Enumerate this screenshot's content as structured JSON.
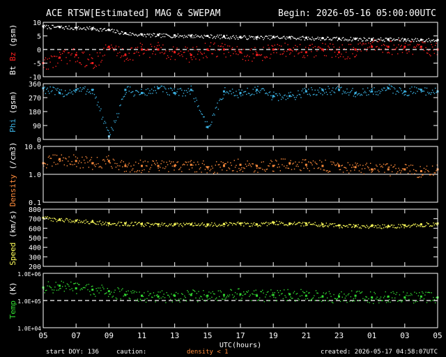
{
  "header": {
    "title": "ACE RTSW[Estimated] MAG & SWEPAM",
    "begin": "Begin: 2026-05-16 05:00:00UTC"
  },
  "footer": {
    "start_doy": "start DOY: 136",
    "caution": "caution:",
    "density_note": "density < 1",
    "created": "created: 2026-05-17 04:58:07UTC"
  },
  "colors": {
    "bt": "#ffffff",
    "bz": "#ff2020",
    "phi": "#3cb4e6",
    "density": "#ff8c3c",
    "speed": "#ffff5a",
    "temp": "#32dc32",
    "frame": "#ffffff"
  },
  "chart_data": [
    {
      "type": "scatter",
      "ylabel_parts": [
        "Bt",
        "Bz",
        "(gsm)"
      ],
      "ylim": [
        -10,
        10
      ],
      "yticks": [
        "10",
        "5",
        "0",
        "-5",
        "-10"
      ],
      "ytick_values": [
        10,
        5,
        0,
        -5,
        -10
      ],
      "dashed_ref": 0,
      "series": [
        {
          "name": "Bt",
          "x": [
            0,
            1,
            2,
            3,
            4,
            5,
            6,
            7,
            8,
            9,
            10,
            11,
            12,
            13,
            14,
            15,
            16,
            17,
            18,
            19,
            20,
            21,
            22,
            23,
            24
          ],
          "values": [
            8.5,
            8.3,
            8,
            7.8,
            7.2,
            6,
            5.5,
            5.3,
            5.2,
            5.1,
            5,
            4.8,
            4.6,
            4.5,
            4.6,
            4.5,
            4.3,
            4.2,
            4,
            4,
            3.8,
            3.8,
            3.7,
            3.6,
            3.5
          ]
        },
        {
          "name": "Bz",
          "x": [
            0,
            1,
            2,
            3,
            4,
            5,
            6,
            7,
            8,
            9,
            10,
            11,
            12,
            13,
            14,
            15,
            16,
            17,
            18,
            19,
            20,
            21,
            22,
            23,
            24
          ],
          "values": [
            -5,
            -3,
            -2,
            -5,
            1,
            -2,
            0,
            0,
            -1,
            -2,
            0,
            0,
            -1,
            -2,
            0,
            0,
            -1,
            0,
            -1,
            0,
            1,
            1,
            1,
            1,
            0
          ]
        }
      ]
    },
    {
      "type": "scatter",
      "ylabel_parts": [
        "Phi",
        "(gsm)"
      ],
      "ylim": [
        0,
        360
      ],
      "yticks": [
        "360",
        "270",
        "180",
        "90",
        "0"
      ],
      "ytick_values": [
        360,
        270,
        180,
        90,
        0
      ],
      "series": [
        {
          "name": "Phi",
          "x": [
            0,
            1,
            2,
            3,
            4,
            5,
            6,
            7,
            8,
            9,
            10,
            11,
            12,
            13,
            14,
            15,
            16,
            17,
            18,
            19,
            20,
            21,
            22,
            23,
            24
          ],
          "values": [
            330,
            300,
            320,
            320,
            20,
            320,
            300,
            330,
            300,
            320,
            80,
            310,
            300,
            320,
            280,
            280,
            310,
            320,
            320,
            300,
            310,
            330,
            310,
            320,
            310
          ]
        }
      ]
    },
    {
      "type": "scatter",
      "ylabel_parts": [
        "Density",
        "(/cm3)"
      ],
      "ylim": [
        0.1,
        10
      ],
      "yscale": "log",
      "yticks": [
        "10.0",
        "1.0",
        "0.1"
      ],
      "ytick_values": [
        10,
        1,
        0.1
      ],
      "solid_ref": 1,
      "series": [
        {
          "name": "Density",
          "x": [
            0,
            1,
            2,
            3,
            4,
            5,
            6,
            7,
            8,
            9,
            10,
            11,
            12,
            13,
            14,
            15,
            16,
            17,
            18,
            19,
            20,
            21,
            22,
            23,
            24
          ],
          "values": [
            2.5,
            3.5,
            3,
            2.5,
            3,
            2,
            2,
            2,
            2,
            2.2,
            1.8,
            2,
            2.2,
            2,
            2,
            2.5,
            2.2,
            2,
            2,
            1.8,
            1.5,
            1.5,
            1.5,
            1.3,
            1.5
          ]
        }
      ]
    },
    {
      "type": "scatter",
      "ylabel_parts": [
        "Speed",
        "(km/s)"
      ],
      "ylim": [
        200,
        800
      ],
      "yticks": [
        "800",
        "700",
        "600",
        "500",
        "400",
        "300",
        "200"
      ],
      "ytick_values": [
        800,
        700,
        600,
        500,
        400,
        300,
        200
      ],
      "series": [
        {
          "name": "Speed",
          "x": [
            0,
            1,
            2,
            3,
            4,
            5,
            6,
            7,
            8,
            9,
            10,
            11,
            12,
            13,
            14,
            15,
            16,
            17,
            18,
            19,
            20,
            21,
            22,
            23,
            24
          ],
          "values": [
            710,
            690,
            680,
            670,
            650,
            650,
            645,
            640,
            640,
            640,
            640,
            645,
            650,
            640,
            660,
            650,
            650,
            640,
            630,
            625,
            625,
            620,
            630,
            640,
            650
          ]
        }
      ]
    },
    {
      "type": "scatter",
      "ylabel_parts": [
        "Temp",
        "(K)"
      ],
      "ylim": [
        10000,
        1000000
      ],
      "yscale": "log",
      "yticks": [
        "1.0E+06",
        "1.0E+05",
        "1.0E+04"
      ],
      "ytick_values": [
        1000000,
        100000,
        10000
      ],
      "dashed_ref": 100000,
      "series": [
        {
          "name": "Temp",
          "x": [
            0,
            1,
            2,
            3,
            4,
            5,
            6,
            7,
            8,
            9,
            10,
            11,
            12,
            13,
            14,
            15,
            16,
            17,
            18,
            19,
            20,
            21,
            22,
            23,
            24
          ],
          "values": [
            300000,
            350000,
            280000,
            250000,
            220000,
            160000,
            150000,
            140000,
            150000,
            160000,
            150000,
            160000,
            170000,
            150000,
            160000,
            170000,
            150000,
            140000,
            140000,
            150000,
            130000,
            140000,
            130000,
            140000,
            130000
          ]
        }
      ]
    },
    {
      "type": "axis",
      "xlabel": "UTC(hours)",
      "xlim": [
        0,
        24
      ],
      "xticks": [
        "05",
        "07",
        "09",
        "11",
        "13",
        "15",
        "17",
        "19",
        "21",
        "23",
        "01",
        "03",
        "05"
      ],
      "xtick_values": [
        0,
        2,
        4,
        6,
        8,
        10,
        12,
        14,
        16,
        18,
        20,
        22,
        24
      ]
    }
  ]
}
